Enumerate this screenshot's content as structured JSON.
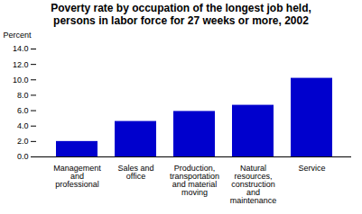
{
  "chart_data": {
    "type": "bar",
    "title": "Poverty rate by occupation of the longest job held,\npersons in labor force for 27 weeks or more, 2002",
    "categories": [
      "Management\nand\nprofessional",
      "Sales and\noffice",
      "Production,\ntransportation\nand material\nmoving",
      "Natural\nresources,\nconstruction\nand\nmaintenance",
      "Service"
    ],
    "values": [
      2.0,
      4.6,
      5.9,
      6.7,
      10.2
    ],
    "color": "#0000CD",
    "ylabel": "Percent",
    "ylim": [
      0,
      14.0
    ],
    "yticks": [
      {
        "value": 0,
        "label": "0.0"
      },
      {
        "value": 2,
        "label": "2.0"
      },
      {
        "value": 4,
        "label": "4.0"
      },
      {
        "value": 6,
        "label": "6.0"
      },
      {
        "value": 8,
        "label": "8.0"
      },
      {
        "value": 10,
        "label": "10.0"
      },
      {
        "value": 12,
        "label": "12.0"
      },
      {
        "value": 14,
        "label": "14.0"
      }
    ],
    "grid": false
  }
}
